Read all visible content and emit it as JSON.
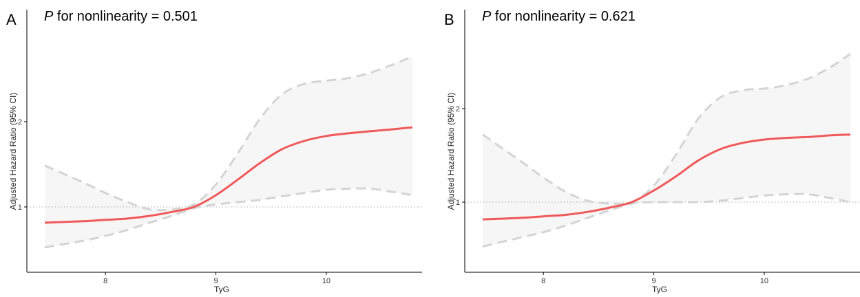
{
  "chart_data": [
    {
      "type": "line",
      "panel_label": "A",
      "annotation": {
        "italic": "P",
        "text": " for nonlinearity = 0.501"
      },
      "xlabel": "TyG",
      "ylabel": "Adjusted Hazard Ratio (95% CI)",
      "y_scale": "log",
      "xlim": [
        7.45,
        10.78
      ],
      "ylim": [
        0.7,
        3.2
      ],
      "xticks": [
        8,
        9,
        10
      ],
      "yticks": [
        1,
        2
      ],
      "reference_line": 1,
      "grid": false,
      "legend": "none",
      "colors": {
        "fit": "#f0585a",
        "ci": "#d4d4d4",
        "band": "#f6f6f6",
        "ref": "#aaaaaa"
      },
      "series": [
        {
          "role": "fit",
          "x": [
            7.45,
            7.8,
            8.0,
            8.2,
            8.4,
            8.6,
            8.8,
            9.0,
            9.2,
            9.4,
            9.6,
            9.8,
            10.0,
            10.2,
            10.4,
            10.6,
            10.78
          ],
          "y": [
            0.88,
            0.89,
            0.9,
            0.91,
            0.93,
            0.96,
            1.0,
            1.1,
            1.25,
            1.43,
            1.6,
            1.71,
            1.78,
            1.82,
            1.85,
            1.88,
            1.91
          ]
        },
        {
          "role": "ci_upper",
          "x": [
            7.45,
            7.8,
            8.0,
            8.2,
            8.4,
            8.6,
            8.8,
            9.0,
            9.2,
            9.4,
            9.6,
            9.8,
            10.0,
            10.2,
            10.4,
            10.6,
            10.78
          ],
          "y": [
            1.4,
            1.22,
            1.12,
            1.04,
            0.98,
            0.98,
            1.02,
            1.2,
            1.55,
            2.05,
            2.5,
            2.72,
            2.79,
            2.85,
            2.98,
            3.18,
            3.4
          ]
        },
        {
          "role": "ci_lower",
          "x": [
            7.45,
            7.8,
            8.0,
            8.2,
            8.4,
            8.6,
            8.8,
            9.0,
            9.2,
            9.4,
            9.6,
            9.8,
            10.0,
            10.2,
            10.4,
            10.6,
            10.78
          ],
          "y": [
            0.72,
            0.76,
            0.79,
            0.83,
            0.88,
            0.93,
            0.99,
            1.02,
            1.04,
            1.06,
            1.09,
            1.12,
            1.15,
            1.16,
            1.16,
            1.13,
            1.1
          ]
        }
      ]
    },
    {
      "type": "line",
      "panel_label": "B",
      "annotation": {
        "italic": "P",
        "text": " for nonlinearity = 0.621"
      },
      "xlabel": "TyG",
      "ylabel": "Adjusted Hazard Ratio (95% CI)",
      "y_scale": "log",
      "xlim": [
        7.45,
        10.78
      ],
      "ylim": [
        0.7,
        3.2
      ],
      "xticks": [
        8,
        9,
        10
      ],
      "yticks": [
        1,
        2
      ],
      "reference_line": 1,
      "grid": false,
      "legend": "none",
      "colors": {
        "fit": "#f0585a",
        "ci": "#d4d4d4",
        "band": "#f6f6f6",
        "ref": "#aaaaaa"
      },
      "series": [
        {
          "role": "fit",
          "x": [
            7.45,
            7.8,
            8.0,
            8.2,
            8.4,
            8.6,
            8.8,
            9.0,
            9.2,
            9.4,
            9.6,
            9.8,
            10.0,
            10.2,
            10.4,
            10.6,
            10.78
          ],
          "y": [
            0.88,
            0.89,
            0.9,
            0.91,
            0.93,
            0.96,
            1.0,
            1.09,
            1.21,
            1.36,
            1.48,
            1.55,
            1.59,
            1.61,
            1.62,
            1.64,
            1.65
          ]
        },
        {
          "role": "ci_upper",
          "x": [
            7.45,
            7.8,
            8.0,
            8.2,
            8.4,
            8.6,
            8.8,
            9.0,
            9.2,
            9.4,
            9.6,
            9.8,
            10.0,
            10.2,
            10.4,
            10.6,
            10.78
          ],
          "y": [
            1.65,
            1.35,
            1.2,
            1.08,
            1.01,
            0.99,
            1.0,
            1.13,
            1.42,
            1.85,
            2.17,
            2.29,
            2.32,
            2.38,
            2.5,
            2.72,
            3.0
          ]
        },
        {
          "role": "ci_lower",
          "x": [
            7.45,
            7.8,
            8.0,
            8.2,
            8.4,
            8.6,
            8.8,
            9.0,
            9.2,
            9.4,
            9.6,
            9.8,
            10.0,
            10.2,
            10.4,
            10.6,
            10.78
          ],
          "y": [
            0.72,
            0.77,
            0.8,
            0.84,
            0.89,
            0.94,
            0.99,
            1.0,
            1.0,
            1.0,
            1.01,
            1.03,
            1.05,
            1.06,
            1.06,
            1.03,
            1.0
          ]
        }
      ]
    }
  ]
}
